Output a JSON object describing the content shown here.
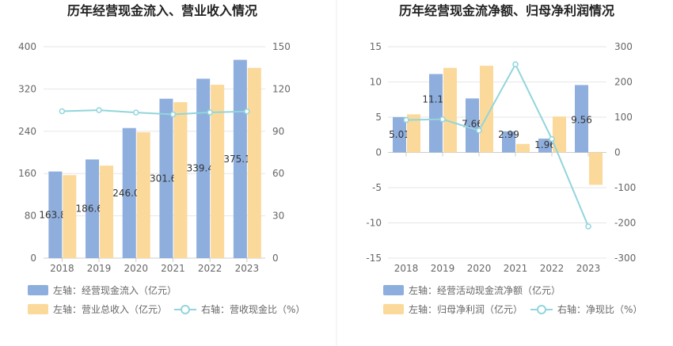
{
  "chart_data": [
    {
      "type": "bar",
      "title": "历年经营现金流入、营业收入情况",
      "categories": [
        "2018",
        "2019",
        "2020",
        "2021",
        "2022",
        "2023"
      ],
      "left_axis": {
        "ylim": [
          0,
          400
        ],
        "ticks": [
          "0",
          "80",
          "160",
          "240",
          "320",
          "400"
        ]
      },
      "right_axis": {
        "ylim": [
          0,
          150
        ],
        "ticks": [
          "0",
          "30",
          "60",
          "90",
          "120",
          "150"
        ]
      },
      "series": [
        {
          "name": "左轴：经营现金流入（亿元）",
          "kind": "bar",
          "axis": "left",
          "color": "#8eaedd",
          "values": [
            163.87,
            186.65,
            246.07,
            301.63,
            339.44,
            375.13
          ],
          "labels": [
            "163.87",
            "186.65",
            "246.07",
            "301.63",
            "339.44",
            "375.13"
          ]
        },
        {
          "name": "左轴：营业总收入（亿元）",
          "kind": "bar",
          "axis": "left",
          "color": "#fbd99a",
          "values": [
            157,
            175,
            238,
            295,
            328,
            360
          ]
        },
        {
          "name": "右轴：营收现金比（%）",
          "kind": "line",
          "axis": "right",
          "color": "#92d5dc",
          "values": [
            104.2,
            105.0,
            103.3,
            102.0,
            103.4,
            104.1
          ]
        }
      ],
      "grid": true,
      "legend": "bottom"
    },
    {
      "type": "bar",
      "title": "历年经营现金流净额、归母净利润情况",
      "categories": [
        "2018",
        "2019",
        "2020",
        "2021",
        "2022",
        "2023"
      ],
      "left_axis": {
        "ylim": [
          -15,
          15
        ],
        "ticks": [
          "-15",
          "-10",
          "-5",
          "0",
          "5",
          "10",
          "15"
        ]
      },
      "right_axis": {
        "ylim": [
          -300,
          300
        ],
        "ticks": [
          "-300",
          "-200",
          "-100",
          "0",
          "100",
          "200",
          "300"
        ]
      },
      "series": [
        {
          "name": "左轴：经营活动现金流净额（亿元）",
          "kind": "bar",
          "axis": "left",
          "color": "#8eaedd",
          "values": [
            5.01,
            11.12,
            7.66,
            2.99,
            1.96,
            9.56
          ],
          "labels": [
            "5.01",
            "11.12",
            "7.66",
            "2.99",
            "1.96",
            "9.56"
          ]
        },
        {
          "name": "左轴：归母净利润（亿元）",
          "kind": "bar",
          "axis": "left",
          "color": "#fbd99a",
          "values": [
            5.4,
            12.0,
            12.3,
            1.2,
            5.1,
            -4.6
          ]
        },
        {
          "name": "右轴：净现比（%）",
          "kind": "line",
          "axis": "right",
          "color": "#92d5dc",
          "values": [
            92,
            94,
            62,
            250,
            38,
            -210
          ]
        }
      ],
      "grid": true,
      "legend": "bottom"
    }
  ]
}
